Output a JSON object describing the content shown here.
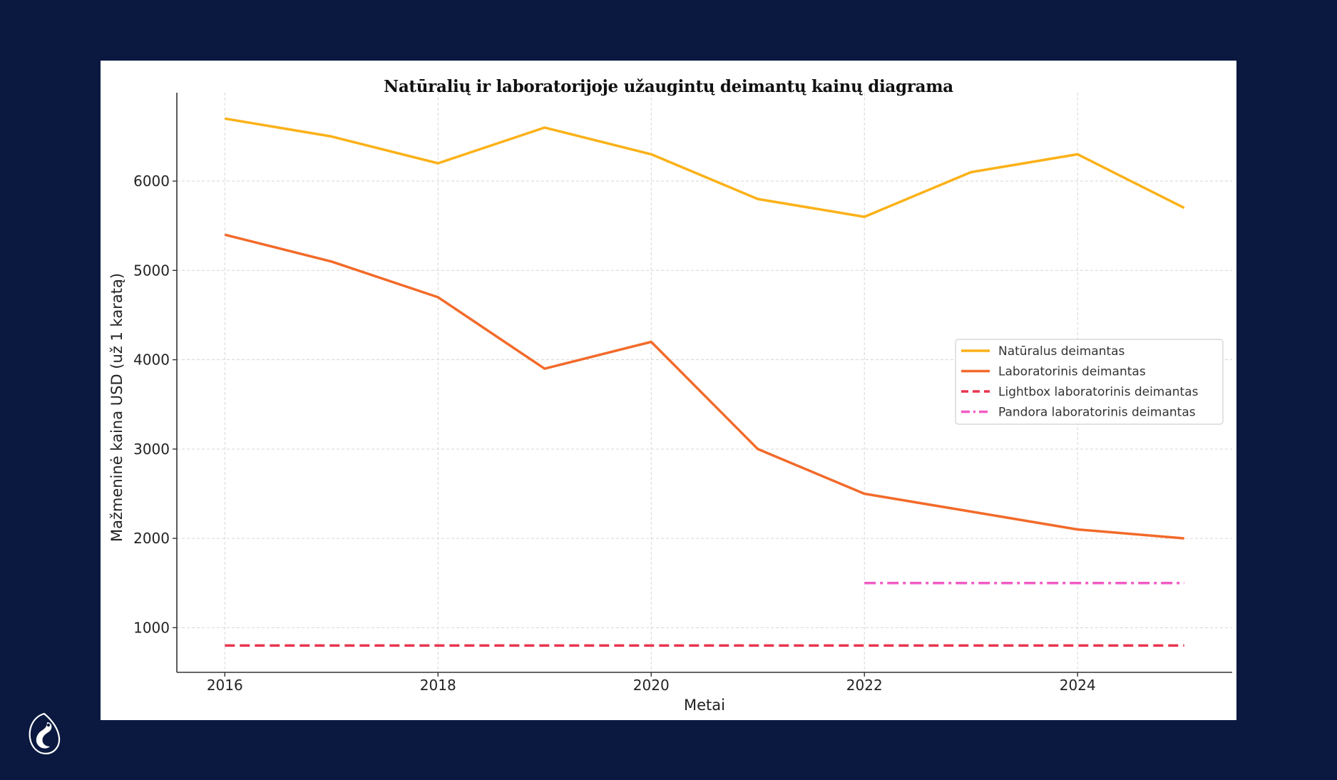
{
  "chart_data": {
    "type": "line",
    "title": "Natūralių ir laboratorijoje užaugintų deimantų kainų diagrama",
    "xlabel": "Metai",
    "ylabel": "Mažmeninė kaina USD (už 1 karatą)",
    "xlim": [
      2015.55,
      2025.45
    ],
    "ylim": [
      500,
      6990
    ],
    "xticks": [
      2016,
      2018,
      2020,
      2022,
      2024
    ],
    "yticks": [
      1000,
      2000,
      3000,
      4000,
      5000,
      6000
    ],
    "grid": true,
    "legend_position": "center-right",
    "series": [
      {
        "name": "Natūralus deimantas",
        "color": "#fbb117",
        "style": "solid",
        "x": [
          2016,
          2017,
          2018,
          2019,
          2020,
          2021,
          2022,
          2023,
          2024,
          2025
        ],
        "values": [
          6700,
          6500,
          6200,
          6600,
          6300,
          5800,
          5600,
          6100,
          6300,
          5700
        ]
      },
      {
        "name": "Laboratorinis deimantas",
        "color": "#f26a2a",
        "style": "solid",
        "x": [
          2016,
          2017,
          2018,
          2019,
          2020,
          2021,
          2022,
          2023,
          2024,
          2025
        ],
        "values": [
          5400,
          5100,
          4700,
          3900,
          4200,
          3000,
          2500,
          2300,
          2100,
          2000
        ]
      },
      {
        "name": "Lightbox laboratorinis deimantas",
        "color": "#e8334f",
        "style": "dashed",
        "x": [
          2016,
          2017,
          2018,
          2019,
          2020,
          2021,
          2022,
          2023,
          2024,
          2025
        ],
        "values": [
          800,
          800,
          800,
          800,
          800,
          800,
          800,
          800,
          800,
          800
        ]
      },
      {
        "name": "Pandora laboratorinis deimantas",
        "color": "#f25bc4",
        "style": "dashdot",
        "x": [
          2022,
          2023,
          2024,
          2025
        ],
        "values": [
          1500,
          1500,
          1500,
          1500
        ]
      }
    ]
  }
}
